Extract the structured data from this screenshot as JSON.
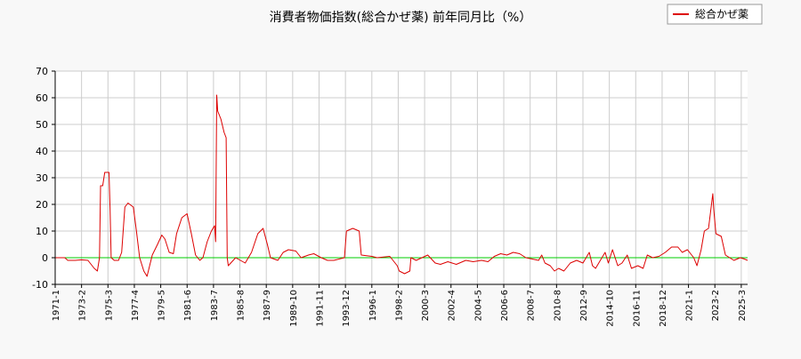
{
  "chart_data": {
    "type": "line",
    "title": "消費者物価指数(総合かぜ薬) 前年同月比（%）",
    "xlabel": "",
    "ylabel": "",
    "ylim": [
      -10,
      70
    ],
    "y_ticks": [
      -10,
      0,
      10,
      20,
      30,
      40,
      50,
      60,
      70
    ],
    "x_range": [
      "1971-01",
      "2025-09"
    ],
    "x_tick_labels": [
      "1971-1",
      "1973-2",
      "1975-3",
      "1977-4",
      "1979-5",
      "1981-6",
      "1983-7",
      "1985-8",
      "1987-9",
      "1989-10",
      "1991-11",
      "1993-12",
      "1996-1",
      "1998-2",
      "2000-3",
      "2002-4",
      "2004-5",
      "2006-6",
      "2008-7",
      "2010-8",
      "2012-9",
      "2014-10",
      "2016-11",
      "2018-12",
      "2021-1",
      "2023-2",
      "2025-3"
    ],
    "grid": true,
    "legend_position": "top-right",
    "reference_line": {
      "y": 0,
      "color": "#00cc00"
    },
    "series": [
      {
        "name": "総合かぜ薬",
        "color": "#dd0000",
        "points": [
          [
            "1971-01",
            0.0
          ],
          [
            "1971-10",
            0.0
          ],
          [
            "1972-01",
            -1.0
          ],
          [
            "1972-08",
            -1.0
          ],
          [
            "1973-02",
            -0.8
          ],
          [
            "1973-08",
            -1.0
          ],
          [
            "1974-02",
            -4.0
          ],
          [
            "1974-05",
            -5.0
          ],
          [
            "1974-07",
            0.0
          ],
          [
            "1974-08",
            27.0
          ],
          [
            "1974-10",
            27.0
          ],
          [
            "1974-12",
            32.0
          ],
          [
            "1975-04",
            32.0
          ],
          [
            "1975-05",
            18.0
          ],
          [
            "1975-06",
            0.0
          ],
          [
            "1975-09",
            -1.0
          ],
          [
            "1976-01",
            -1.0
          ],
          [
            "1976-04",
            2.0
          ],
          [
            "1976-07",
            19.0
          ],
          [
            "1976-10",
            20.5
          ],
          [
            "1977-03",
            19.0
          ],
          [
            "1977-06",
            10.0
          ],
          [
            "1977-09",
            0.0
          ],
          [
            "1978-01",
            -5.0
          ],
          [
            "1978-04",
            -7.0
          ],
          [
            "1978-09",
            1.0
          ],
          [
            "1979-02",
            5.0
          ],
          [
            "1979-06",
            8.5
          ],
          [
            "1979-09",
            7.0
          ],
          [
            "1980-01",
            2.0
          ],
          [
            "1980-05",
            1.5
          ],
          [
            "1980-08",
            9.0
          ],
          [
            "1981-01",
            15.0
          ],
          [
            "1981-06",
            16.5
          ],
          [
            "1981-10",
            9.0
          ],
          [
            "1982-02",
            1.0
          ],
          [
            "1982-06",
            -1.0
          ],
          [
            "1982-09",
            0.0
          ],
          [
            "1983-01",
            6.0
          ],
          [
            "1983-05",
            10.0
          ],
          [
            "1983-08",
            12.0
          ],
          [
            "1983-09",
            6.0
          ],
          [
            "1983-10",
            61.0
          ],
          [
            "1983-11",
            55.0
          ],
          [
            "1984-02",
            52.0
          ],
          [
            "1984-05",
            47.0
          ],
          [
            "1984-07",
            45.0
          ],
          [
            "1984-08",
            0.0
          ],
          [
            "1984-09",
            -3.0
          ],
          [
            "1985-04",
            0.0
          ],
          [
            "1986-01",
            -2.0
          ],
          [
            "1986-07",
            2.0
          ],
          [
            "1987-01",
            9.0
          ],
          [
            "1987-06",
            11.0
          ],
          [
            "1987-10",
            5.0
          ],
          [
            "1988-01",
            0.0
          ],
          [
            "1988-08",
            -1.0
          ],
          [
            "1989-01",
            2.0
          ],
          [
            "1989-06",
            3.0
          ],
          [
            "1990-01",
            2.5
          ],
          [
            "1990-06",
            0.0
          ],
          [
            "1991-01",
            1.0
          ],
          [
            "1991-06",
            1.5
          ],
          [
            "1992-01",
            0.0
          ],
          [
            "1992-07",
            -1.0
          ],
          [
            "1993-01",
            -1.0
          ],
          [
            "1993-11",
            0.0
          ],
          [
            "1994-01",
            10.0
          ],
          [
            "1994-07",
            11.0
          ],
          [
            "1995-01",
            10.0
          ],
          [
            "1995-03",
            1.0
          ],
          [
            "1996-01",
            0.5
          ],
          [
            "1996-06",
            0.0
          ],
          [
            "1997-06",
            0.5
          ],
          [
            "1998-01",
            -3.0
          ],
          [
            "1998-03",
            -5.0
          ],
          [
            "1998-08",
            -6.0
          ],
          [
            "1999-01",
            -5.0
          ],
          [
            "1999-02",
            0.0
          ],
          [
            "1999-07",
            -1.0
          ],
          [
            "2000-06",
            1.0
          ],
          [
            "2001-01",
            -2.0
          ],
          [
            "2001-06",
            -2.5
          ],
          [
            "2002-01",
            -1.5
          ],
          [
            "2002-09",
            -2.5
          ],
          [
            "2003-06",
            -1.0
          ],
          [
            "2004-01",
            -1.5
          ],
          [
            "2004-09",
            -1.0
          ],
          [
            "2005-03",
            -1.5
          ],
          [
            "2005-09",
            0.5
          ],
          [
            "2006-03",
            1.5
          ],
          [
            "2006-09",
            1.0
          ],
          [
            "2007-03",
            2.0
          ],
          [
            "2007-09",
            1.5
          ],
          [
            "2008-03",
            0.0
          ],
          [
            "2008-09",
            -0.5
          ],
          [
            "2009-03",
            -1.0
          ],
          [
            "2009-06",
            1.0
          ],
          [
            "2009-09",
            -2.0
          ],
          [
            "2010-02",
            -3.0
          ],
          [
            "2010-06",
            -5.0
          ],
          [
            "2010-10",
            -4.0
          ],
          [
            "2011-03",
            -5.0
          ],
          [
            "2011-09",
            -2.0
          ],
          [
            "2012-03",
            -1.0
          ],
          [
            "2012-09",
            -2.0
          ],
          [
            "2013-03",
            2.0
          ],
          [
            "2013-06",
            -3.0
          ],
          [
            "2013-09",
            -4.0
          ],
          [
            "2014-03",
            0.0
          ],
          [
            "2014-06",
            2.0
          ],
          [
            "2014-09",
            -2.0
          ],
          [
            "2015-01",
            3.0
          ],
          [
            "2015-06",
            -3.0
          ],
          [
            "2015-10",
            -2.0
          ],
          [
            "2016-03",
            1.0
          ],
          [
            "2016-07",
            -4.0
          ],
          [
            "2017-01",
            -3.0
          ],
          [
            "2017-06",
            -4.0
          ],
          [
            "2017-10",
            1.0
          ],
          [
            "2018-03",
            0.0
          ],
          [
            "2018-09",
            0.5
          ],
          [
            "2019-03",
            2.0
          ],
          [
            "2019-09",
            4.0
          ],
          [
            "2020-03",
            4.0
          ],
          [
            "2020-07",
            2.0
          ],
          [
            "2020-12",
            3.0
          ],
          [
            "2021-06",
            0.0
          ],
          [
            "2021-09",
            -3.0
          ],
          [
            "2022-01",
            3.0
          ],
          [
            "2022-04",
            10.0
          ],
          [
            "2022-08",
            11.0
          ],
          [
            "2022-12",
            24.0
          ],
          [
            "2023-01",
            18.0
          ],
          [
            "2023-03",
            9.0
          ],
          [
            "2023-08",
            8.0
          ],
          [
            "2023-12",
            1.0
          ],
          [
            "2024-04",
            0.0
          ],
          [
            "2024-08",
            -1.0
          ],
          [
            "2025-02",
            0.0
          ],
          [
            "2025-06",
            -0.5
          ],
          [
            "2025-09",
            -1.0
          ]
        ]
      }
    ]
  }
}
